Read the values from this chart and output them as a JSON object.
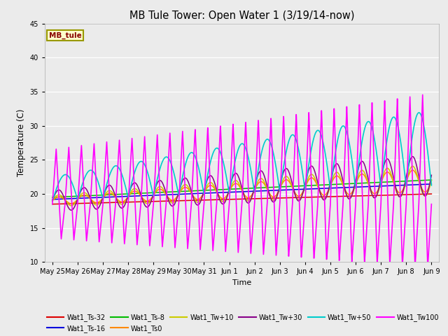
{
  "title": "MB Tule Tower: Open Water 1 (3/19/14-now)",
  "xlabel": "Time",
  "ylabel": "Temperature (C)",
  "ylim": [
    10,
    45
  ],
  "yticks": [
    10,
    15,
    20,
    25,
    30,
    35,
    40,
    45
  ],
  "bg_color": "#ebebeb",
  "series_colors": {
    "Wat1_Ts-32": "#dd0000",
    "Wat1_Ts-16": "#0000dd",
    "Wat1_Ts-8": "#00bb00",
    "Wat1_Ts0": "#ff8800",
    "Wat1_Tw+10": "#cccc00",
    "Wat1_Tw+30": "#880088",
    "Wat1_Tw+50": "#00cccc",
    "Wat1_Tw100": "#ff00ff"
  },
  "x_tick_labels": [
    "May 25",
    "May 26",
    "May 27",
    "May 28",
    "May 29",
    "May 30",
    "May 31",
    "Jun 1",
    "Jun 2",
    "Jun 3",
    "Jun 4",
    "Jun 5",
    "Jun 6",
    "Jun 7",
    "Jun 8",
    "Jun 9"
  ],
  "x_tick_positions": [
    0,
    1,
    2,
    3,
    4,
    5,
    6,
    7,
    8,
    9,
    10,
    11,
    12,
    13,
    14,
    15
  ]
}
